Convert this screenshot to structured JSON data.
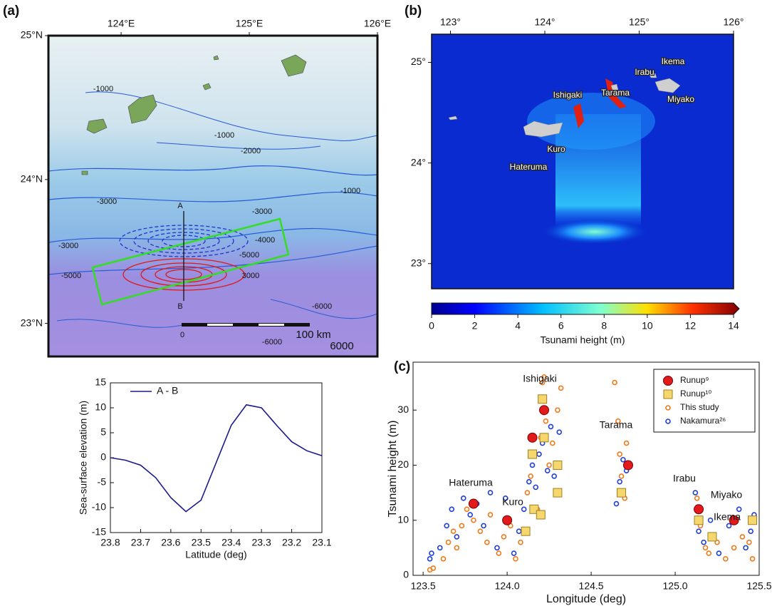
{
  "chart_data": [
    {
      "type": "map",
      "panel_label": "(a)",
      "xlim": [
        123.433,
        126.0
      ],
      "ylim": [
        22.77,
        25.0
      ],
      "xticks": [
        {
          "value": 124,
          "label": "124°E"
        },
        {
          "value": 125,
          "label": "125°E"
        },
        {
          "value": 126,
          "label": "126°E"
        }
      ],
      "yticks": [
        {
          "value": 23,
          "label": "23°N"
        },
        {
          "value": 24,
          "label": "24°N"
        },
        {
          "value": 25,
          "label": "25°N"
        }
      ],
      "annotations": [
        "-1000",
        "-1000",
        "-2000",
        "-1000",
        "-3000",
        "-3000",
        "-4000",
        "-5000",
        "-3000",
        "-5000",
        "3000",
        "-6000",
        "-6000",
        "6000",
        "A",
        "B",
        "0",
        "100 km"
      ]
    },
    {
      "type": "line",
      "xlabel": "Latitude (deg)",
      "ylabel": "Sea-surface elevation (m)",
      "x": [
        23.8,
        23.75,
        23.7,
        23.65,
        23.6,
        23.55,
        23.5,
        23.45,
        23.4,
        23.35,
        23.3,
        23.25,
        23.2,
        23.15,
        23.1
      ],
      "series": [
        {
          "name": "A - B",
          "color": "#1a1a8c",
          "values": [
            0,
            -0.5,
            -1.5,
            -4,
            -8,
            -10.8,
            -8.5,
            -1,
            6.5,
            10.6,
            10,
            6.5,
            3.2,
            1.4,
            0.4
          ]
        }
      ],
      "xlim": [
        23.8,
        23.1
      ],
      "ylim": [
        -15,
        15
      ],
      "xticks": [
        23.8,
        23.7,
        23.6,
        23.5,
        23.4,
        23.3,
        23.2,
        23.1
      ],
      "yticks": [
        -15,
        -10,
        -5,
        0,
        5,
        10,
        15
      ]
    },
    {
      "type": "map",
      "panel_label": "(b)",
      "xlim": [
        122.8,
        126.0
      ],
      "ylim": [
        22.75,
        25.28
      ],
      "xticks": [
        {
          "value": 123,
          "label": "123°"
        },
        {
          "value": 124,
          "label": "124°"
        },
        {
          "value": 125,
          "label": "125°"
        },
        {
          "value": 126,
          "label": "126°"
        }
      ],
      "yticks": [
        {
          "value": 23,
          "label": "23°"
        },
        {
          "value": 24,
          "label": "24°"
        },
        {
          "value": 25,
          "label": "25°"
        }
      ],
      "annotations": [
        "Ikema",
        "Irabu",
        "Tarama",
        "Ishigaki",
        "Miyako",
        "Kuro",
        "Hateruma"
      ],
      "colorbar": {
        "label": "Tsunami height (m)",
        "lim": [
          0,
          14
        ],
        "ticks": [
          0,
          2,
          4,
          6,
          8,
          10,
          12,
          14
        ]
      }
    },
    {
      "type": "scatter",
      "panel_label": "(c)",
      "xlabel": "Longitude (deg)",
      "ylabel": "Tsunami height (m)",
      "xlim": [
        123.44,
        125.5
      ],
      "ylim": [
        0,
        38.7
      ],
      "xticks": [
        123.5,
        {
          "value": 124,
          "label": "124.0"
        },
        124.5,
        {
          "value": 125,
          "label": "125.0"
        },
        125.5
      ],
      "yticks": [
        0,
        10,
        20,
        30
      ],
      "annotations": [
        "Ishigaki",
        "Tarama",
        "Hateruma",
        "Kuro",
        "Irabu",
        "Ikema",
        "Miyako"
      ],
      "series": [
        {
          "name": "Runup⁹",
          "color": "#e31a1c",
          "marker": "circle-filled",
          "x": [
            123.8,
            124.0,
            124.15,
            124.22,
            124.72,
            125.14,
            125.35
          ],
          "values": [
            13,
            10,
            25,
            30,
            20,
            12,
            10
          ]
        },
        {
          "name": "Runup¹⁰",
          "color": "#f5d76e",
          "marker": "square",
          "x": [
            124.21,
            124.15,
            124.22,
            124.16,
            124.2,
            124.3,
            124.3,
            124.11,
            124.68,
            125.14,
            125.22,
            125.46
          ],
          "values": [
            32,
            22,
            25,
            12,
            11,
            20,
            15,
            8,
            15,
            10,
            7,
            10
          ]
        },
        {
          "name": "This study",
          "color": "#f07a1a",
          "marker": "circle-open",
          "x": [
            123.54,
            123.56,
            123.62,
            123.65,
            123.68,
            123.7,
            123.73,
            123.76,
            123.8,
            123.84,
            123.88,
            123.9,
            123.95,
            123.98,
            124.02,
            124.05,
            124.08,
            124.12,
            124.14,
            124.16,
            124.18,
            124.2,
            124.21,
            124.22,
            124.23,
            124.25,
            124.27,
            124.3,
            124.32,
            124.64,
            124.66,
            124.67,
            124.68,
            124.7,
            124.71,
            125.13,
            125.15,
            125.18,
            125.2,
            125.25,
            125.3,
            125.35,
            125.4,
            125.44,
            125.46
          ],
          "values": [
            1,
            1.3,
            3,
            6,
            8,
            5,
            9,
            12,
            10,
            8,
            6,
            11,
            4,
            7,
            9,
            3,
            6,
            15,
            18,
            22,
            12,
            25,
            35,
            36,
            28,
            20,
            24,
            30,
            34,
            35,
            28,
            22,
            18,
            14,
            24,
            14,
            9,
            5,
            4,
            6,
            3,
            5,
            7,
            6,
            3
          ]
        },
        {
          "name": "Nakamura²⁶",
          "color": "#1f3fd6",
          "marker": "circle-open",
          "x": [
            123.54,
            123.55,
            123.6,
            123.64,
            123.67,
            123.7,
            123.74,
            123.78,
            123.82,
            123.86,
            123.9,
            123.94,
            123.99,
            124.01,
            124.04,
            124.07,
            124.1,
            124.13,
            124.15,
            124.17,
            124.19,
            124.21,
            124.24,
            124.26,
            124.28,
            124.31,
            124.65,
            124.67,
            124.69,
            124.71,
            125.12,
            125.14,
            125.17,
            125.21,
            125.26,
            125.32,
            125.38,
            125.42,
            125.45,
            125.47
          ],
          "values": [
            3,
            4,
            5,
            9,
            12,
            7,
            14,
            11,
            13,
            9,
            15,
            5,
            14,
            10,
            4,
            8,
            12,
            17,
            20,
            16,
            22,
            24,
            19,
            27,
            18,
            26,
            13,
            17,
            21,
            19,
            15,
            8,
            6,
            10,
            4,
            9,
            12,
            5,
            8,
            11
          ]
        }
      ]
    }
  ]
}
